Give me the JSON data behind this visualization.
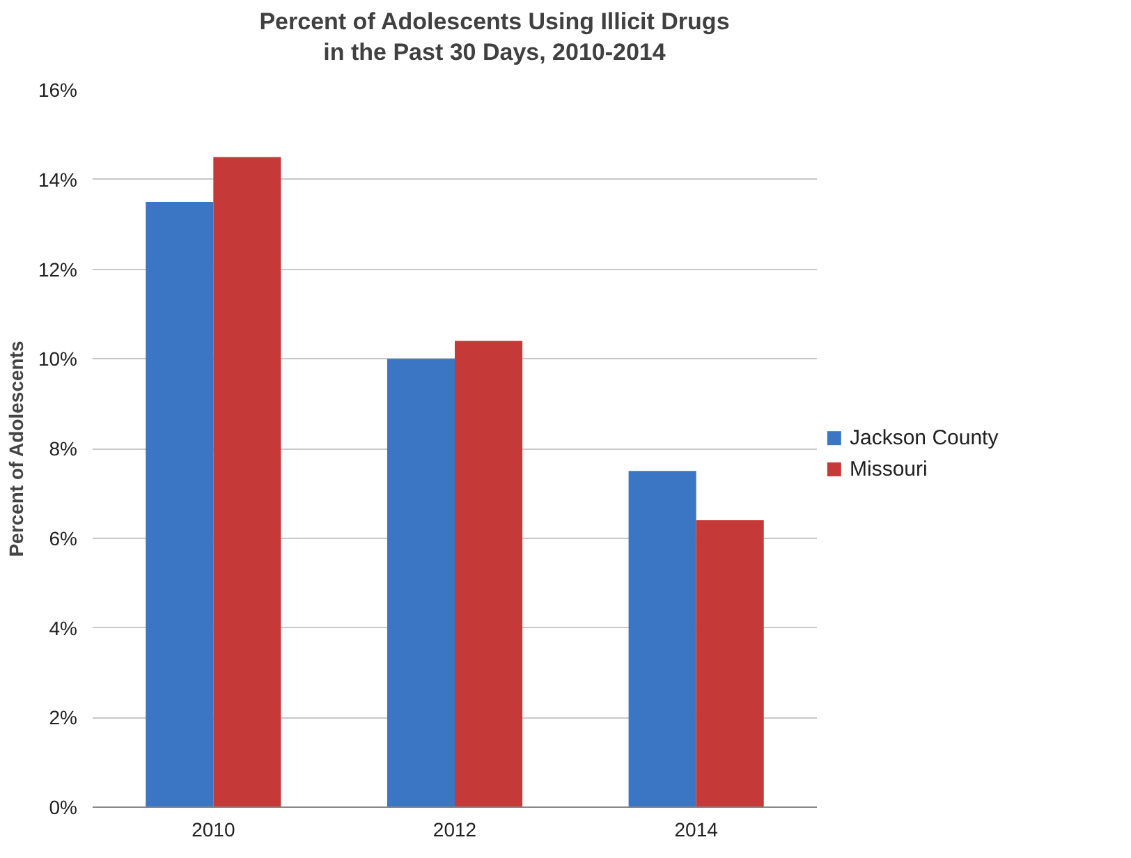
{
  "chart_data": {
    "type": "bar",
    "title": "Percent of Adolescents Using Illicit Drugs\nin the Past 30 Days, 2010-2014",
    "ylabel": "Percent of Adolescents",
    "categories": [
      "2010",
      "2012",
      "2014"
    ],
    "series": [
      {
        "name": "Jackson County",
        "color": "#3a76c4",
        "values": [
          13.5,
          10.0,
          7.5
        ]
      },
      {
        "name": "Missouri",
        "color": "#c53a38",
        "values": [
          14.5,
          10.4,
          6.4
        ]
      }
    ],
    "ylim": [
      0,
      16
    ],
    "yticks": [
      {
        "value": 0,
        "label": "0%"
      },
      {
        "value": 2,
        "label": "2%"
      },
      {
        "value": 4,
        "label": "4%"
      },
      {
        "value": 6,
        "label": "6%"
      },
      {
        "value": 8,
        "label": "8%"
      },
      {
        "value": 10,
        "label": "10%"
      },
      {
        "value": 12,
        "label": "12%"
      },
      {
        "value": 14,
        "label": "14%"
      },
      {
        "value": 16,
        "label": "16%"
      }
    ],
    "grid": "y",
    "legend": "right"
  }
}
